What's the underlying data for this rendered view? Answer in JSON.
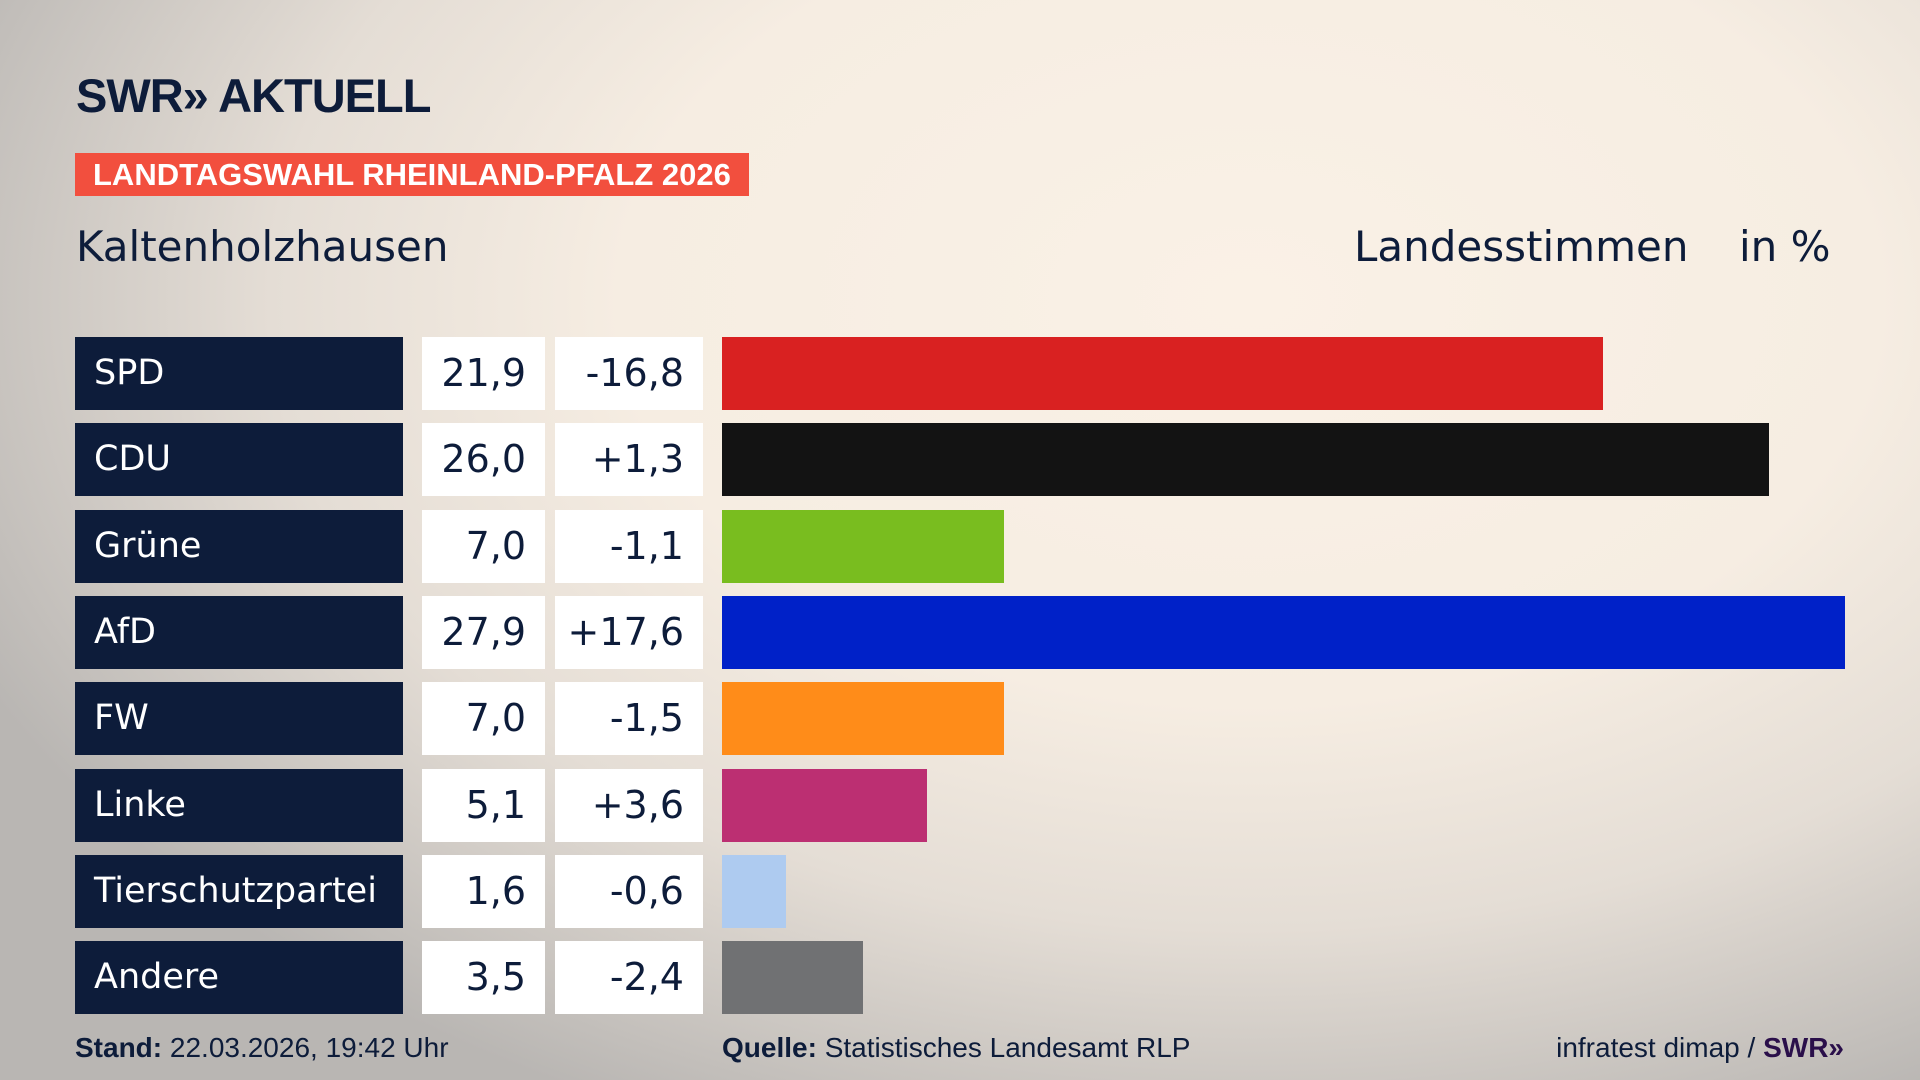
{
  "header": {
    "logo": "SWR» AKTUELL",
    "banner": "LANDTAGSWAHL RHEINLAND-PFALZ 2026",
    "region": "Kaltenholzhausen",
    "measure": "Landesstimmen",
    "unit": "in %"
  },
  "chart_data": {
    "type": "bar",
    "orientation": "horizontal",
    "categories": [
      "SPD",
      "CDU",
      "Grüne",
      "AfD",
      "FW",
      "Linke",
      "Tierschutzpartei",
      "Andere"
    ],
    "values": [
      "21,9",
      "26,0",
      "7,0",
      "27,9",
      "7,0",
      "5,1",
      "1,6",
      "3,5"
    ],
    "numeric_values": [
      21.9,
      26.0,
      7.0,
      27.9,
      7.0,
      5.1,
      1.6,
      3.5
    ],
    "diffs": [
      "-16,8",
      "+1,3",
      "-1,1",
      "+17,6",
      "-1,5",
      "+3,6",
      "-0,6",
      "-2,4"
    ],
    "colors": [
      "#d92121",
      "#131313",
      "#79bd1f",
      "#0021c8",
      "#ff8c19",
      "#bc2f72",
      "#aecbf0",
      "#707173"
    ],
    "xlim": [
      0,
      27.9
    ]
  },
  "footer": {
    "stand_label": "Stand:",
    "stand_value": "22.03.2026, 19:42 Uhr",
    "source_label": "Quelle:",
    "source_value": "Statistisches Landesamt RLP",
    "credit": "infratest dimap /",
    "credit_logo": "SWR»"
  }
}
